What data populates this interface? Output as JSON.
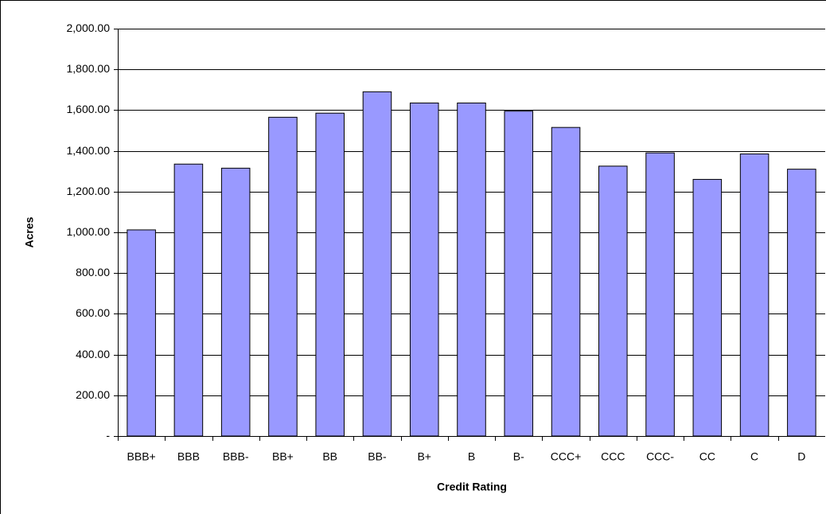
{
  "chart_data": {
    "type": "bar",
    "x_label": "Credit Rating",
    "y_label": "Acres",
    "categories": [
      "BBB+",
      "BBB",
      "BBB-",
      "BB+",
      "BB",
      "BB-",
      "B+",
      "B",
      "B-",
      "CCC+",
      "CCC",
      "CCC-",
      "CC",
      "C",
      "D"
    ],
    "values": [
      1012,
      1335,
      1315,
      1565,
      1585,
      1690,
      1635,
      1635,
      1595,
      1515,
      1325,
      1390,
      1260,
      1385,
      1310
    ],
    "color": "#9999ff",
    "ylim": [
      0,
      2000
    ],
    "yticks": [
      {
        "value": 0,
        "label": "-"
      },
      {
        "value": 200,
        "label": "200.00"
      },
      {
        "value": 400,
        "label": "400.00"
      },
      {
        "value": 600,
        "label": "600.00"
      },
      {
        "value": 800,
        "label": "800.00"
      },
      {
        "value": 1000,
        "label": "1,000.00"
      },
      {
        "value": 1200,
        "label": "1,200.00"
      },
      {
        "value": 1400,
        "label": "1,400.00"
      },
      {
        "value": 1600,
        "label": "1,600.00"
      },
      {
        "value": 1800,
        "label": "1,800.00"
      },
      {
        "value": 2000,
        "label": "2,000.00"
      }
    ],
    "grid": true
  }
}
